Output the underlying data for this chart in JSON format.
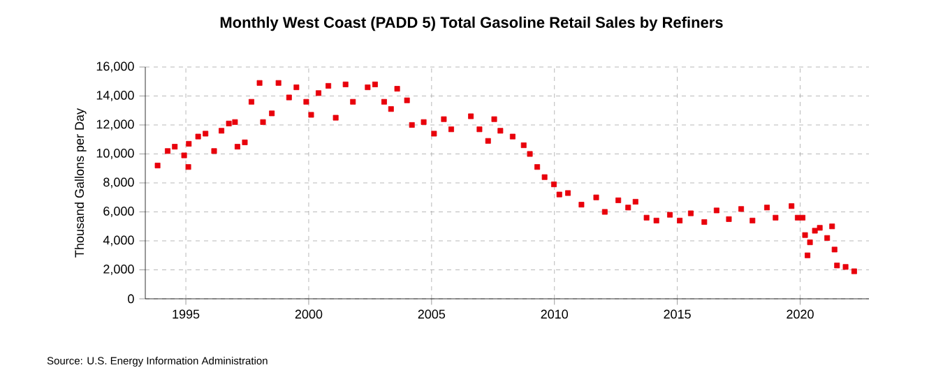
{
  "chart_data": {
    "type": "scatter",
    "title": "Monthly West Coast (PADD 5) Total Gasoline Retail Sales by Refiners",
    "ylabel": "Thousand Gallons per Day",
    "annotations": [
      "Source: U.S. Energy Information Administration"
    ],
    "marker": "square",
    "grid": true,
    "xlim": [
      1993.35,
      2022.8
    ],
    "xticks": [
      1995,
      2000,
      2005,
      2010,
      2015,
      2020
    ],
    "ylim": [
      0,
      16000
    ],
    "yticks": [
      {
        "value": 0,
        "label": "0"
      },
      {
        "value": 2000,
        "label": "2,000"
      },
      {
        "value": 4000,
        "label": "4,000"
      },
      {
        "value": 6000,
        "label": "6,000"
      },
      {
        "value": 8000,
        "label": "8,000"
      },
      {
        "value": 10000,
        "label": "10,000"
      },
      {
        "value": 12000,
        "label": "12,000"
      },
      {
        "value": 14000,
        "label": "14,000"
      },
      {
        "value": 16000,
        "label": "16,000"
      }
    ],
    "series": [
      {
        "color": "#e8000b",
        "x": [
          1993.85,
          1994.26,
          1994.55,
          1994.93,
          1995.1,
          1995.12,
          1995.5,
          1995.8,
          1996.15,
          1996.45,
          1996.75,
          1997.0,
          1997.1,
          1997.4,
          1997.67,
          1998.0,
          1998.14,
          1998.5,
          1998.77,
          1999.2,
          1999.5,
          1999.9,
          2000.1,
          2000.4,
          2000.8,
          2001.1,
          2001.5,
          2001.8,
          2002.4,
          2002.7,
          2003.07,
          2003.35,
          2003.6,
          2004.0,
          2004.2,
          2004.68,
          2005.1,
          2005.5,
          2005.8,
          2006.6,
          2006.95,
          2007.3,
          2007.55,
          2007.8,
          2008.3,
          2008.75,
          2009.0,
          2009.3,
          2009.6,
          2009.98,
          2010.2,
          2010.55,
          2011.1,
          2011.7,
          2012.05,
          2012.6,
          2013.0,
          2013.3,
          2013.75,
          2014.15,
          2014.7,
          2015.1,
          2015.55,
          2016.1,
          2016.6,
          2017.1,
          2017.6,
          2018.06,
          2018.65,
          2019.0,
          2019.65,
          2019.9,
          2020.1,
          2020.2,
          2020.3,
          2020.4,
          2020.6,
          2020.8,
          2021.1,
          2021.3,
          2021.4,
          2021.5,
          2021.85,
          2022.2
        ],
        "values": [
          9200,
          10200,
          10500,
          9900,
          9100,
          10700,
          11200,
          11400,
          10200,
          11600,
          12100,
          12200,
          10500,
          10800,
          13600,
          14900,
          12200,
          12800,
          14900,
          13900,
          14600,
          13600,
          12700,
          14200,
          14700,
          12500,
          14800,
          13600,
          14600,
          14800,
          13600,
          13100,
          14500,
          13700,
          12000,
          12200,
          11400,
          12400,
          11700,
          12600,
          11700,
          10900,
          12400,
          11600,
          11200,
          10600,
          10000,
          9100,
          8400,
          7900,
          7200,
          7300,
          6500,
          7000,
          6000,
          6800,
          6300,
          6700,
          5600,
          5400,
          5800,
          5400,
          5900,
          5300,
          6100,
          5500,
          6200,
          5400,
          6300,
          5600,
          6400,
          5600,
          5600,
          4400,
          3000,
          3900,
          4700,
          4900,
          4200,
          5000,
          3400,
          2300,
          2200,
          1900
        ]
      }
    ]
  }
}
